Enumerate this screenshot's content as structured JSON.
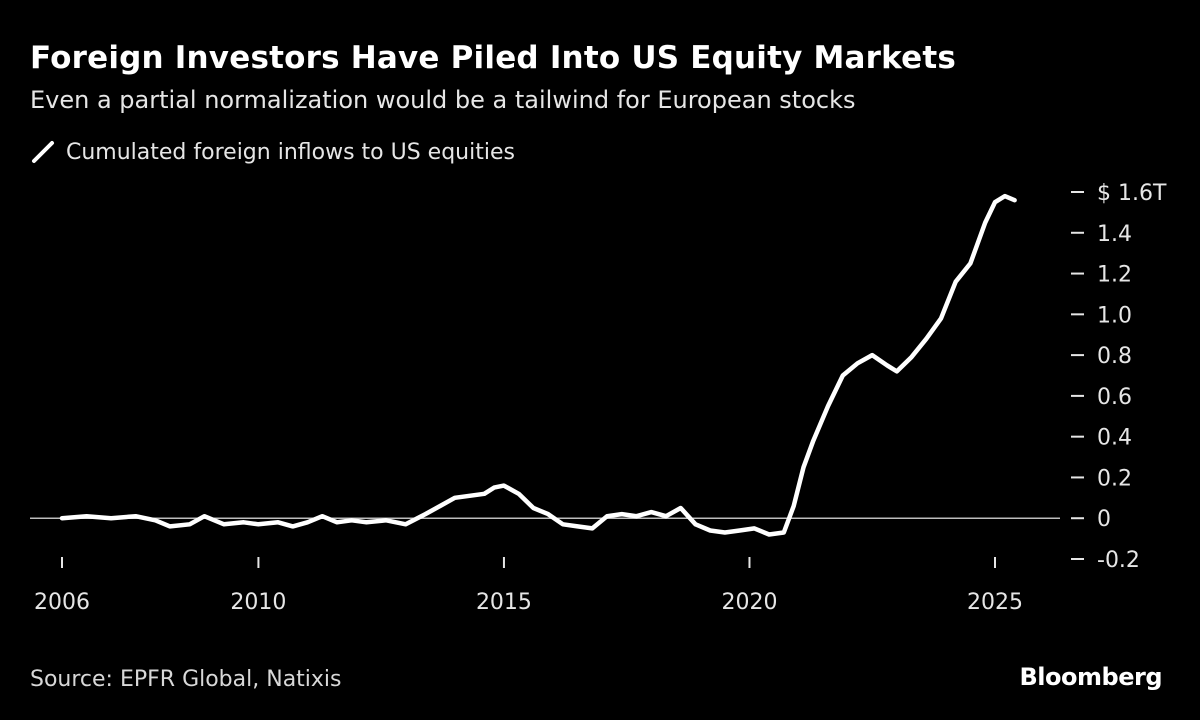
{
  "chart_data": {
    "type": "line",
    "title": "Foreign Investors Have Piled Into US Equity Markets",
    "subtitle": "Even a partial normalization would be a tailwind for European stocks",
    "source": "Source: EPFR Global, Natixis",
    "brand": "Bloomberg",
    "xlim": [
      2006,
      2026.3
    ],
    "ylim": [
      -0.2,
      1.6
    ],
    "x_ticks": [
      2006,
      2010,
      2015,
      2020,
      2025
    ],
    "x_tick_labels": [
      "2006",
      "2010",
      "2015",
      "2020",
      "2025"
    ],
    "y_ticks": [
      1.6,
      1.4,
      1.2,
      1.0,
      0.8,
      0.6,
      0.4,
      0.2,
      0,
      -0.2
    ],
    "y_tick_labels": [
      "$ 1.6T",
      "1.4",
      "1.2",
      "1.0",
      "0.8",
      "0.6",
      "0.4",
      "0.2",
      "0",
      "-0.2"
    ],
    "y_axis_side": "right",
    "zero_line": true,
    "grid": false,
    "legend_position": "top-left",
    "line_color": "#ffffff",
    "series": [
      {
        "name": "Cumulated foreign inflows to US equities",
        "x": [
          2006.0,
          2006.5,
          2007.0,
          2007.5,
          2007.9,
          2008.2,
          2008.6,
          2008.9,
          2009.3,
          2009.7,
          2010.0,
          2010.4,
          2010.7,
          2011.0,
          2011.3,
          2011.6,
          2011.9,
          2012.2,
          2012.6,
          2013.0,
          2013.4,
          2013.7,
          2014.0,
          2014.3,
          2014.6,
          2014.8,
          2015.0,
          2015.3,
          2015.6,
          2015.9,
          2016.2,
          2016.5,
          2016.8,
          2017.1,
          2017.4,
          2017.7,
          2018.0,
          2018.3,
          2018.6,
          2018.9,
          2019.2,
          2019.5,
          2019.8,
          2020.1,
          2020.4,
          2020.7,
          2020.9,
          2021.1,
          2021.3,
          2021.6,
          2021.9,
          2022.2,
          2022.5,
          2022.8,
          2023.0,
          2023.3,
          2023.6,
          2023.9,
          2024.2,
          2024.5,
          2024.8,
          2025.0,
          2025.2,
          2025.4
        ],
        "values": [
          0.0,
          0.01,
          0.0,
          0.01,
          -0.01,
          -0.04,
          -0.03,
          0.01,
          -0.03,
          -0.02,
          -0.03,
          -0.02,
          -0.04,
          -0.02,
          0.01,
          -0.02,
          -0.01,
          -0.02,
          -0.01,
          -0.03,
          0.02,
          0.06,
          0.1,
          0.11,
          0.12,
          0.15,
          0.16,
          0.12,
          0.05,
          0.02,
          -0.03,
          -0.04,
          -0.05,
          0.01,
          0.02,
          0.01,
          0.03,
          0.01,
          0.05,
          -0.03,
          -0.06,
          -0.07,
          -0.06,
          -0.05,
          -0.08,
          -0.07,
          0.06,
          0.25,
          0.38,
          0.55,
          0.7,
          0.76,
          0.8,
          0.75,
          0.72,
          0.79,
          0.88,
          0.98,
          1.16,
          1.25,
          1.45,
          1.55,
          1.58,
          1.56
        ]
      }
    ]
  }
}
